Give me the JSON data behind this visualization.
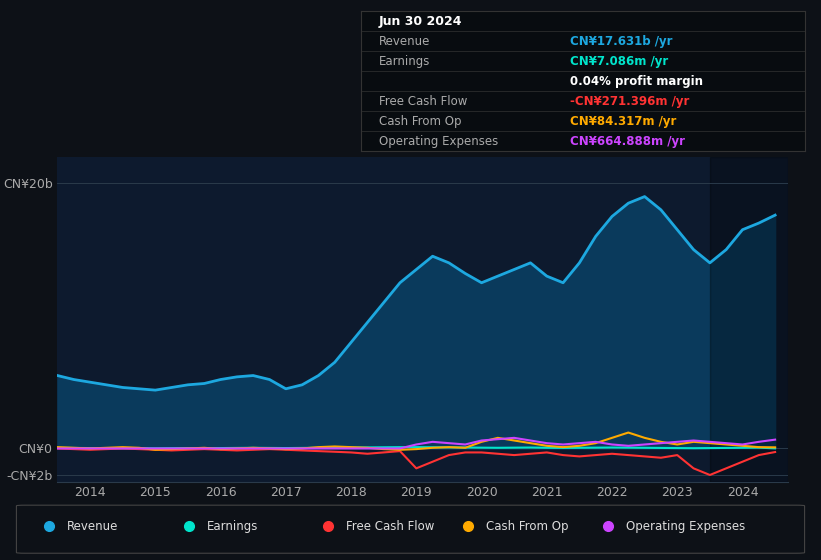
{
  "bg_color": "#0d1117",
  "plot_bg_color": "#0d1a2e",
  "years": [
    2013.5,
    2013.75,
    2014.0,
    2014.25,
    2014.5,
    2014.75,
    2015.0,
    2015.25,
    2015.5,
    2015.75,
    2016.0,
    2016.25,
    2016.5,
    2016.75,
    2017.0,
    2017.25,
    2017.5,
    2017.75,
    2018.0,
    2018.25,
    2018.5,
    2018.75,
    2019.0,
    2019.25,
    2019.5,
    2019.75,
    2020.0,
    2020.25,
    2020.5,
    2020.75,
    2021.0,
    2021.25,
    2021.5,
    2021.75,
    2022.0,
    2022.25,
    2022.5,
    2022.75,
    2023.0,
    2023.25,
    2023.5,
    2023.75,
    2024.0,
    2024.25,
    2024.5
  ],
  "revenue": [
    5.5,
    5.2,
    5.0,
    4.8,
    4.6,
    4.5,
    4.4,
    4.6,
    4.8,
    4.9,
    5.2,
    5.4,
    5.5,
    5.2,
    4.5,
    4.8,
    5.5,
    6.5,
    8.0,
    9.5,
    11.0,
    12.5,
    13.5,
    14.5,
    14.0,
    13.2,
    12.5,
    13.0,
    13.5,
    14.0,
    13.0,
    12.5,
    14.0,
    16.0,
    17.5,
    18.5,
    19.0,
    18.0,
    16.5,
    15.0,
    14.0,
    15.0,
    16.5,
    17.0,
    17.6
  ],
  "earnings": [
    0.05,
    0.04,
    0.03,
    0.02,
    0.02,
    0.02,
    0.01,
    0.02,
    0.03,
    0.02,
    0.03,
    0.04,
    0.05,
    0.04,
    0.03,
    0.04,
    0.05,
    0.06,
    0.07,
    0.08,
    0.09,
    0.1,
    0.1,
    0.09,
    0.08,
    0.07,
    0.06,
    0.05,
    0.06,
    0.07,
    0.05,
    0.04,
    0.05,
    0.06,
    0.07,
    0.06,
    0.05,
    0.04,
    0.03,
    0.02,
    0.03,
    0.04,
    0.05,
    0.06,
    0.007
  ],
  "free_cash_flow": [
    0.0,
    -0.05,
    -0.1,
    -0.05,
    0.0,
    -0.05,
    -0.1,
    -0.15,
    -0.1,
    -0.05,
    -0.1,
    -0.15,
    -0.1,
    -0.05,
    -0.1,
    -0.15,
    -0.2,
    -0.25,
    -0.3,
    -0.4,
    -0.3,
    -0.2,
    -1.5,
    -1.0,
    -0.5,
    -0.3,
    -0.3,
    -0.4,
    -0.5,
    -0.4,
    -0.3,
    -0.5,
    -0.6,
    -0.5,
    -0.4,
    -0.5,
    -0.6,
    -0.7,
    -0.5,
    -1.5,
    -2.0,
    -1.5,
    -1.0,
    -0.5,
    -0.27
  ],
  "cash_from_op": [
    0.1,
    0.05,
    0.0,
    0.05,
    0.1,
    0.05,
    -0.1,
    -0.05,
    0.0,
    0.05,
    -0.05,
    0.0,
    0.05,
    0.0,
    -0.05,
    0.0,
    0.1,
    0.15,
    0.1,
    0.05,
    -0.05,
    -0.1,
    -0.05,
    0.05,
    0.1,
    0.05,
    0.5,
    0.8,
    0.6,
    0.4,
    0.2,
    0.1,
    0.2,
    0.4,
    0.8,
    1.2,
    0.8,
    0.5,
    0.3,
    0.5,
    0.4,
    0.3,
    0.2,
    0.1,
    0.084
  ],
  "operating_expenses": [
    0.0,
    0.0,
    0.0,
    0.0,
    0.0,
    0.0,
    0.0,
    0.0,
    0.0,
    0.0,
    0.0,
    0.0,
    0.0,
    0.0,
    0.0,
    0.0,
    0.0,
    0.0,
    0.0,
    0.0,
    0.0,
    0.0,
    0.3,
    0.5,
    0.4,
    0.3,
    0.6,
    0.7,
    0.8,
    0.6,
    0.4,
    0.3,
    0.4,
    0.5,
    0.3,
    0.2,
    0.3,
    0.4,
    0.5,
    0.6,
    0.5,
    0.4,
    0.3,
    0.5,
    0.665
  ],
  "ylim": [
    -2.5,
    22
  ],
  "ytick_labels": [
    "-CN¥2b",
    "CN¥0",
    "CN¥20b"
  ],
  "ytick_vals": [
    -2,
    0,
    20
  ],
  "xticks": [
    2014,
    2015,
    2016,
    2017,
    2018,
    2019,
    2020,
    2021,
    2022,
    2023,
    2024
  ],
  "xlim": [
    2013.5,
    2024.7
  ],
  "shade_start": 2023.5,
  "colors": {
    "revenue_line": "#1da8e0",
    "revenue_fill": "#0a3a5c",
    "earnings": "#00e5cc",
    "free_cash_flow": "#ff3333",
    "cash_from_op": "#ffaa00",
    "operating_expenses": "#cc44ff",
    "text": "#aaaaaa",
    "hline": "#2a3a4a"
  },
  "table_rows": [
    {
      "label": "Jun 30 2024",
      "value": "",
      "label_color": "#ffffff",
      "value_color": null,
      "header": true
    },
    {
      "label": "Revenue",
      "value": "CN¥17.631b /yr",
      "label_color": "#aaaaaa",
      "value_color": "#1da8e0",
      "header": false
    },
    {
      "label": "Earnings",
      "value": "CN¥7.086m /yr",
      "label_color": "#aaaaaa",
      "value_color": "#00e5cc",
      "header": false
    },
    {
      "label": "",
      "value": "0.04% profit margin",
      "label_color": null,
      "value_color": "#ffffff",
      "header": false
    },
    {
      "label": "Free Cash Flow",
      "value": "-CN¥271.396m /yr",
      "label_color": "#aaaaaa",
      "value_color": "#ff3333",
      "header": false
    },
    {
      "label": "Cash From Op",
      "value": "CN¥84.317m /yr",
      "label_color": "#aaaaaa",
      "value_color": "#ffaa00",
      "header": false
    },
    {
      "label": "Operating Expenses",
      "value": "CN¥664.888m /yr",
      "label_color": "#aaaaaa",
      "value_color": "#cc44ff",
      "header": false
    }
  ],
  "legend": [
    {
      "label": "Revenue",
      "color": "#1da8e0"
    },
    {
      "label": "Earnings",
      "color": "#00e5cc"
    },
    {
      "label": "Free Cash Flow",
      "color": "#ff3333"
    },
    {
      "label": "Cash From Op",
      "color": "#ffaa00"
    },
    {
      "label": "Operating Expenses",
      "color": "#cc44ff"
    }
  ]
}
